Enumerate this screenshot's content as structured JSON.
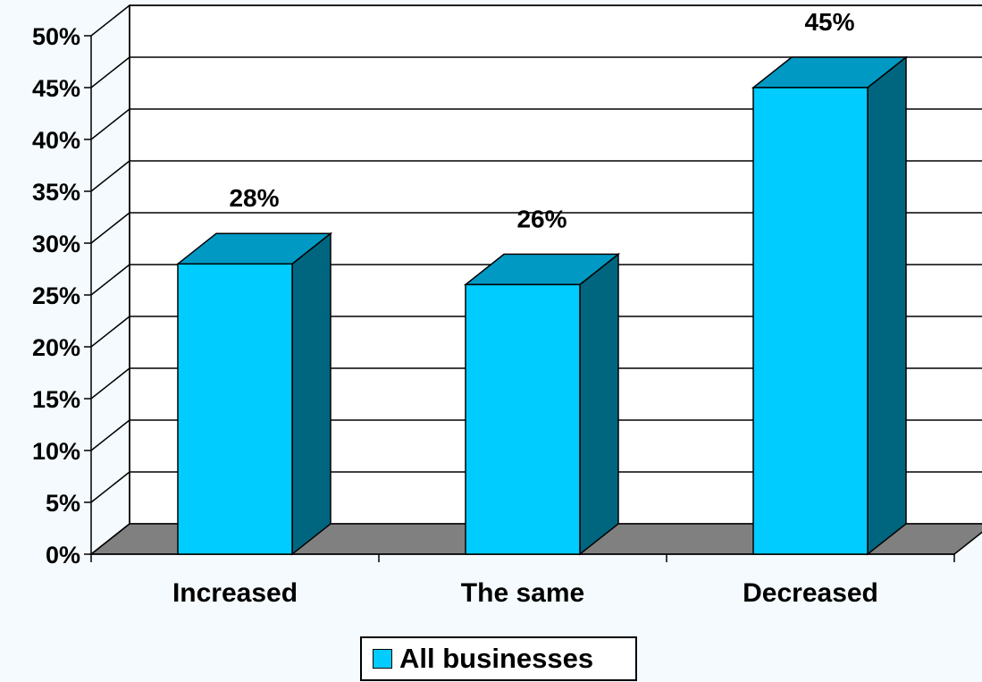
{
  "chart_data": {
    "type": "bar",
    "style": "3d-column",
    "categories": [
      "Increased",
      "The same",
      "Decreased"
    ],
    "series": [
      {
        "name": "All businesses",
        "values": [
          28,
          26,
          45
        ]
      }
    ],
    "data_labels": [
      "28%",
      "26%",
      "45%"
    ],
    "ylim": [
      0,
      50
    ],
    "yticks": [
      0,
      5,
      10,
      15,
      20,
      25,
      30,
      35,
      40,
      45,
      50
    ],
    "ytick_labels": [
      "0%",
      "5%",
      "10%",
      "15%",
      "20%",
      "25%",
      "30%",
      "35%",
      "40%",
      "45%",
      "50%"
    ],
    "grid": true,
    "legend_position": "bottom",
    "colors": {
      "bar_front": "#00ccff",
      "bar_top": "#0099c4",
      "bar_side": "#006680",
      "floor": "#808080",
      "background": "#ffffff"
    }
  },
  "legend": {
    "label": "All businesses"
  }
}
